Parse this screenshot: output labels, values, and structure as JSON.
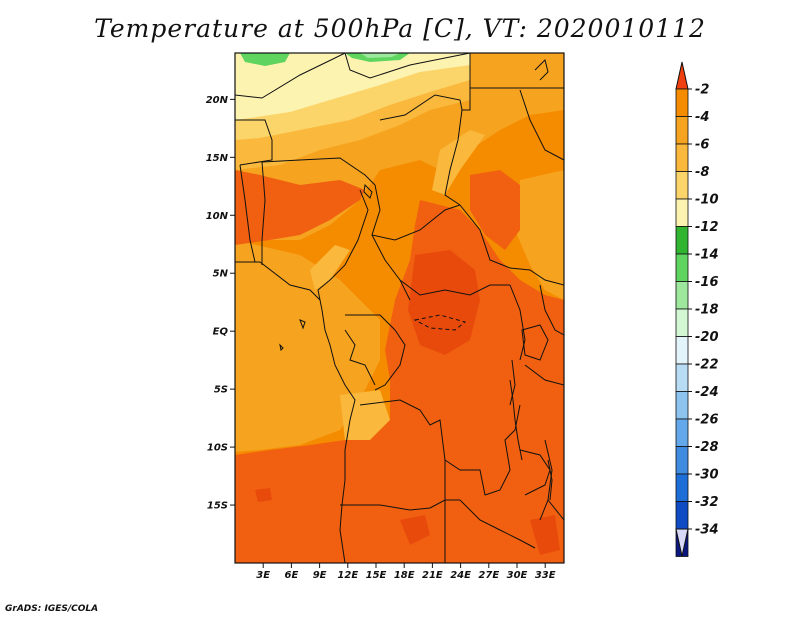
{
  "title": "Temperature at 500hPa [C], VT: 2020010112",
  "credit": "GrADS: IGES/COLA",
  "map": {
    "region": "Central Africa",
    "lon_range": [
      0,
      35
    ],
    "lat_range": [
      -20,
      24
    ],
    "lat_ticks": [
      {
        "value": 20,
        "label": "20N"
      },
      {
        "value": 15,
        "label": "15N"
      },
      {
        "value": 10,
        "label": "10N"
      },
      {
        "value": 5,
        "label": "5N"
      },
      {
        "value": 0,
        "label": "EQ"
      },
      {
        "value": -5,
        "label": "5S"
      },
      {
        "value": -10,
        "label": "10S"
      },
      {
        "value": -15,
        "label": "15S"
      }
    ],
    "lon_ticks": [
      {
        "value": 3,
        "label": "3E"
      },
      {
        "value": 6,
        "label": "6E"
      },
      {
        "value": 9,
        "label": "9E"
      },
      {
        "value": 12,
        "label": "12E"
      },
      {
        "value": 15,
        "label": "15E"
      },
      {
        "value": 18,
        "label": "18E"
      },
      {
        "value": 21,
        "label": "21E"
      },
      {
        "value": 24,
        "label": "24E"
      },
      {
        "value": 27,
        "label": "27E"
      },
      {
        "value": 30,
        "label": "30E"
      },
      {
        "value": 33,
        "label": "33E"
      }
    ]
  },
  "colorbar": {
    "unit": "C",
    "levels": [
      {
        "label": "-2",
        "color": "#f06010"
      },
      {
        "label": "-4",
        "color": "#f58c00"
      },
      {
        "label": "-6",
        "color": "#f6a31f"
      },
      {
        "label": "-8",
        "color": "#fab83c"
      },
      {
        "label": "-10",
        "color": "#fbd56a"
      },
      {
        "label": "-12",
        "color": "#fdf3b1"
      },
      {
        "label": "-14",
        "color": "#31b531"
      },
      {
        "label": "-16",
        "color": "#5fd55f"
      },
      {
        "label": "-18",
        "color": "#9de89d"
      },
      {
        "label": "-20",
        "color": "#d2f7d2"
      },
      {
        "label": "-22",
        "color": "#e3f4fb"
      },
      {
        "label": "-24",
        "color": "#b8dcf4"
      },
      {
        "label": "-26",
        "color": "#8cc3ef"
      },
      {
        "label": "-28",
        "color": "#63a8ea"
      },
      {
        "label": "-30",
        "color": "#3e8be0"
      },
      {
        "label": "-32",
        "color": "#1e6ed7"
      },
      {
        "label": "-34",
        "color": "#0f4cc4"
      }
    ],
    "top_color": "#f04010",
    "bottom_color": "#0b1780",
    "under_color": "#d8d8f8"
  }
}
